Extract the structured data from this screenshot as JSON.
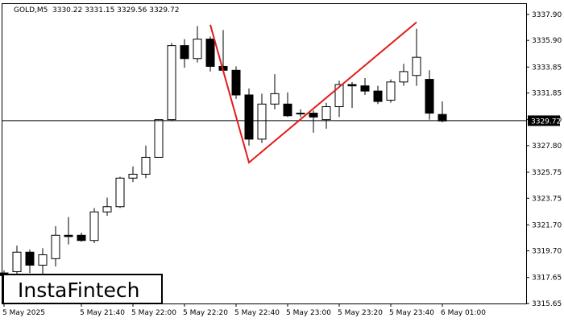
{
  "header": {
    "symbol": "GOLD,M5",
    "ohlc": "3330.22 3331.15 3329.56 3329.72"
  },
  "logo": {
    "text": "InstaFintech"
  },
  "current_price": {
    "label": "3329.72",
    "value": 3329.72
  },
  "colors": {
    "pattern_line": "#e31b1b",
    "candle_outline": "#000000",
    "bull_fill": "#ffffff",
    "bear_fill": "#000000",
    "price_tag_bg": "#000000"
  },
  "chart_data": {
    "type": "candlestick",
    "ylim": [
      3315.65,
      3338.7
    ],
    "y_ticks": [
      "3315.65",
      "3317.65",
      "3319.70",
      "3321.70",
      "3323.75",
      "3325.75",
      "3327.80",
      "3329.80",
      "3331.85",
      "3333.85",
      "3335.90",
      "3337.90"
    ],
    "x_ticks": [
      {
        "label": "5 May 2025",
        "bar": 0
      },
      {
        "label": "5 May 21:40",
        "bar": 6
      },
      {
        "label": "5 May 22:00",
        "bar": 10
      },
      {
        "label": "5 May 22:20",
        "bar": 14
      },
      {
        "label": "5 May 22:40",
        "bar": 18
      },
      {
        "label": "5 May 23:00",
        "bar": 22
      },
      {
        "label": "5 May 23:20",
        "bar": 26
      },
      {
        "label": "5 May 23:40",
        "bar": 30
      },
      {
        "label": "6 May 01:00",
        "bar": 34
      }
    ],
    "candles": [
      {
        "o": 3318.0,
        "h": 3318.2,
        "l": 3317.5,
        "c": 3317.8
      },
      {
        "o": 3318.1,
        "h": 3320.1,
        "l": 3317.9,
        "c": 3319.6
      },
      {
        "o": 3319.6,
        "h": 3319.8,
        "l": 3318.0,
        "c": 3318.6
      },
      {
        "o": 3318.6,
        "h": 3319.9,
        "l": 3317.9,
        "c": 3319.4
      },
      {
        "o": 3319.1,
        "h": 3321.6,
        "l": 3318.5,
        "c": 3320.9
      },
      {
        "o": 3320.9,
        "h": 3322.3,
        "l": 3320.2,
        "c": 3320.8
      },
      {
        "o": 3320.9,
        "h": 3321.1,
        "l": 3320.4,
        "c": 3320.5
      },
      {
        "o": 3320.5,
        "h": 3323.0,
        "l": 3320.3,
        "c": 3322.7
      },
      {
        "o": 3322.7,
        "h": 3323.8,
        "l": 3322.4,
        "c": 3323.1
      },
      {
        "o": 3323.1,
        "h": 3325.4,
        "l": 3323.0,
        "c": 3325.3
      },
      {
        "o": 3325.3,
        "h": 3326.2,
        "l": 3325.0,
        "c": 3325.6
      },
      {
        "o": 3325.6,
        "h": 3327.8,
        "l": 3325.3,
        "c": 3326.9
      },
      {
        "o": 3326.9,
        "h": 3329.8,
        "l": 3326.9,
        "c": 3329.8
      },
      {
        "o": 3329.8,
        "h": 3335.7,
        "l": 3329.7,
        "c": 3335.5
      },
      {
        "o": 3335.5,
        "h": 3336.0,
        "l": 3333.8,
        "c": 3334.5
      },
      {
        "o": 3334.5,
        "h": 3337.0,
        "l": 3334.2,
        "c": 3336.0
      },
      {
        "o": 3336.0,
        "h": 3336.2,
        "l": 3333.5,
        "c": 3333.9
      },
      {
        "o": 3333.9,
        "h": 3336.7,
        "l": 3333.4,
        "c": 3333.6
      },
      {
        "o": 3333.6,
        "h": 3333.9,
        "l": 3331.4,
        "c": 3331.7
      },
      {
        "o": 3331.7,
        "h": 3332.2,
        "l": 3327.8,
        "c": 3328.3
      },
      {
        "o": 3328.3,
        "h": 3331.8,
        "l": 3328.0,
        "c": 3331.0
      },
      {
        "o": 3331.0,
        "h": 3333.3,
        "l": 3330.6,
        "c": 3331.8
      },
      {
        "o": 3331.0,
        "h": 3331.9,
        "l": 3330.0,
        "c": 3330.1
      },
      {
        "o": 3330.3,
        "h": 3330.6,
        "l": 3330.0,
        "c": 3330.3
      },
      {
        "o": 3330.3,
        "h": 3330.5,
        "l": 3328.8,
        "c": 3330.0
      },
      {
        "o": 3329.8,
        "h": 3331.1,
        "l": 3329.1,
        "c": 3330.8
      },
      {
        "o": 3330.8,
        "h": 3332.8,
        "l": 3330.0,
        "c": 3332.5
      },
      {
        "o": 3332.5,
        "h": 3332.7,
        "l": 3330.7,
        "c": 3332.4
      },
      {
        "o": 3332.4,
        "h": 3333.0,
        "l": 3331.7,
        "c": 3332.0
      },
      {
        "o": 3332.0,
        "h": 3332.4,
        "l": 3331.0,
        "c": 3331.2
      },
      {
        "o": 3331.3,
        "h": 3332.9,
        "l": 3331.1,
        "c": 3332.7
      },
      {
        "o": 3332.7,
        "h": 3334.1,
        "l": 3332.4,
        "c": 3333.5
      },
      {
        "o": 3333.2,
        "h": 3336.8,
        "l": 3332.4,
        "c": 3334.6
      },
      {
        "o": 3332.9,
        "h": 3333.6,
        "l": 3329.8,
        "c": 3330.3
      },
      {
        "o": 3330.2,
        "h": 3331.2,
        "l": 3329.6,
        "c": 3329.7
      }
    ],
    "pattern_line": [
      {
        "bar": 16,
        "price": 3337.1
      },
      {
        "bar": 19,
        "price": 3326.5
      },
      {
        "bar": 32,
        "price": 3337.3
      }
    ]
  }
}
